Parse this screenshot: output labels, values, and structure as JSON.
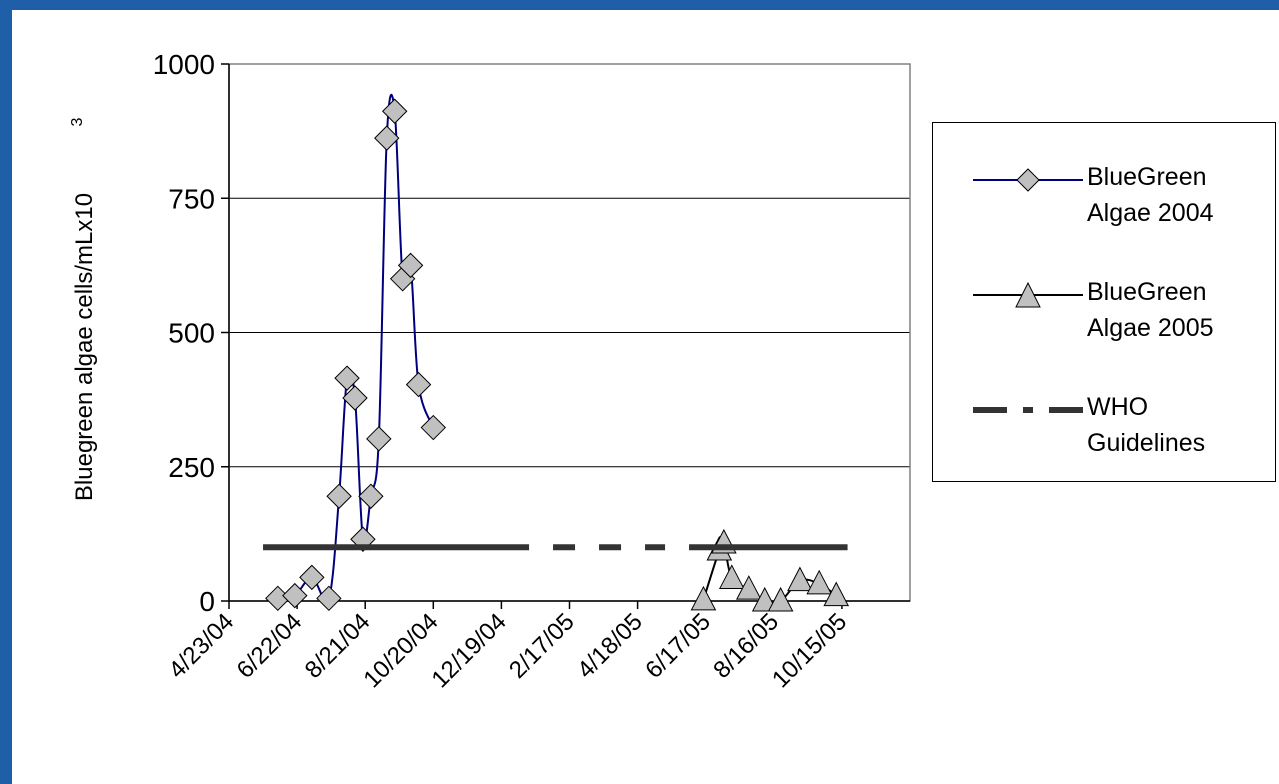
{
  "colors": {
    "frame": "#1f5fa8",
    "series_2004_line": "#00007f",
    "marker_fill": "#c0c0c0",
    "who_line": "#333333"
  },
  "chart_data": {
    "type": "line",
    "title": "",
    "ylabel": "Bluegreen algae cells/mLx10",
    "ylabel_superscript": "3",
    "xlabel": "",
    "ylim": [
      0,
      1000
    ],
    "y_ticks": [
      0,
      250,
      500,
      750,
      1000
    ],
    "xlim": [
      "4/23/04",
      "12/14/05"
    ],
    "x_tick_labels": [
      "4/23/04",
      "6/22/04",
      "8/21/04",
      "10/20/04",
      "12/19/04",
      "2/17/05",
      "4/18/05",
      "6/17/05",
      "8/16/05",
      "10/15/05"
    ],
    "grid": "horizontal",
    "legend_position": "right",
    "series": [
      {
        "name": "BlueGreen Algae 2004",
        "marker": "diamond",
        "color": "#00007f",
        "points": [
          {
            "x": "6/5/04",
            "y": 5
          },
          {
            "x": "6/20/04",
            "y": 10
          },
          {
            "x": "7/5/04",
            "y": 44
          },
          {
            "x": "7/20/04",
            "y": 5
          },
          {
            "x": "7/29/04",
            "y": 195
          },
          {
            "x": "8/5/04",
            "y": 415
          },
          {
            "x": "8/12/04",
            "y": 378
          },
          {
            "x": "8/19/04",
            "y": 115
          },
          {
            "x": "8/26/04",
            "y": 195
          },
          {
            "x": "9/2/04",
            "y": 302
          },
          {
            "x": "9/9/04",
            "y": 862
          },
          {
            "x": "9/16/04",
            "y": 912
          },
          {
            "x": "9/23/04",
            "y": 600
          },
          {
            "x": "9/30/04",
            "y": 625
          },
          {
            "x": "10/7/04",
            "y": 403
          },
          {
            "x": "10/20/04",
            "y": 323
          }
        ]
      },
      {
        "name": "BlueGreen Algae 2005",
        "marker": "triangle",
        "color": "#000000",
        "points": [
          {
            "x": "6/15/05",
            "y": 2
          },
          {
            "x": "6/29/05",
            "y": 95
          },
          {
            "x": "7/3/05",
            "y": 108
          },
          {
            "x": "7/10/05",
            "y": 42
          },
          {
            "x": "7/25/05",
            "y": 22
          },
          {
            "x": "8/8/05",
            "y": 0
          },
          {
            "x": "8/22/05",
            "y": 0
          },
          {
            "x": "9/8/05",
            "y": 38
          },
          {
            "x": "9/25/05",
            "y": 32
          },
          {
            "x": "10/10/05",
            "y": 10
          }
        ]
      },
      {
        "name": "WHO Guidelines",
        "style": "dash-dot",
        "color": "#333333",
        "points": [
          {
            "x": "5/23/04",
            "y": 100
          },
          {
            "x": "10/20/05",
            "y": 100
          }
        ]
      }
    ]
  },
  "legend": {
    "items": [
      {
        "label": "BlueGreen Algae 2004"
      },
      {
        "label": "BlueGreen Algae 2005"
      },
      {
        "label": "WHO Guidelines"
      }
    ]
  }
}
